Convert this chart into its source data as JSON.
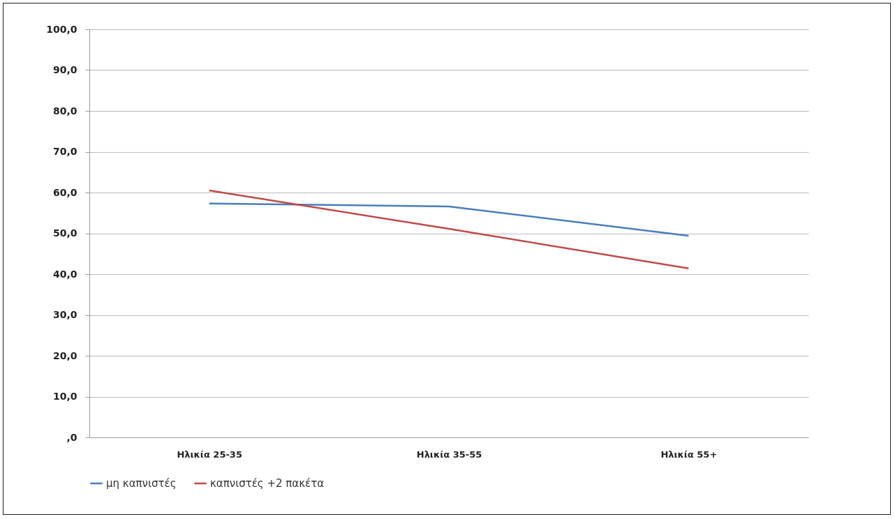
{
  "chart_data": {
    "type": "line",
    "categories": [
      "Ηλικία 25-35",
      "Ηλικία 35-55",
      "Ηλικία 55+"
    ],
    "series": [
      {
        "name": "μη καπνιστές",
        "color": "#4a7ebb",
        "values": [
          57.3,
          56.6,
          49.4
        ]
      },
      {
        "name": "καπνιστές +2 πακέτα",
        "color": "#be4b48",
        "values": [
          60.5,
          51.1,
          41.4
        ]
      }
    ],
    "ylim": [
      0,
      100
    ],
    "yticks": [
      {
        "value": 0,
        "label": ",0"
      },
      {
        "value": 10,
        "label": "10,0"
      },
      {
        "value": 20,
        "label": "20,0"
      },
      {
        "value": 30,
        "label": "30,0"
      },
      {
        "value": 40,
        "label": "40,0"
      },
      {
        "value": 50,
        "label": "50,0"
      },
      {
        "value": 60,
        "label": "60,0"
      },
      {
        "value": 70,
        "label": "70,0"
      },
      {
        "value": 80,
        "label": "80,0"
      },
      {
        "value": 90,
        "label": "90,0"
      },
      {
        "value": 100,
        "label": "100,0"
      }
    ],
    "grid": "y",
    "legend": "bottom",
    "marker": "none",
    "line_style": "solid"
  }
}
